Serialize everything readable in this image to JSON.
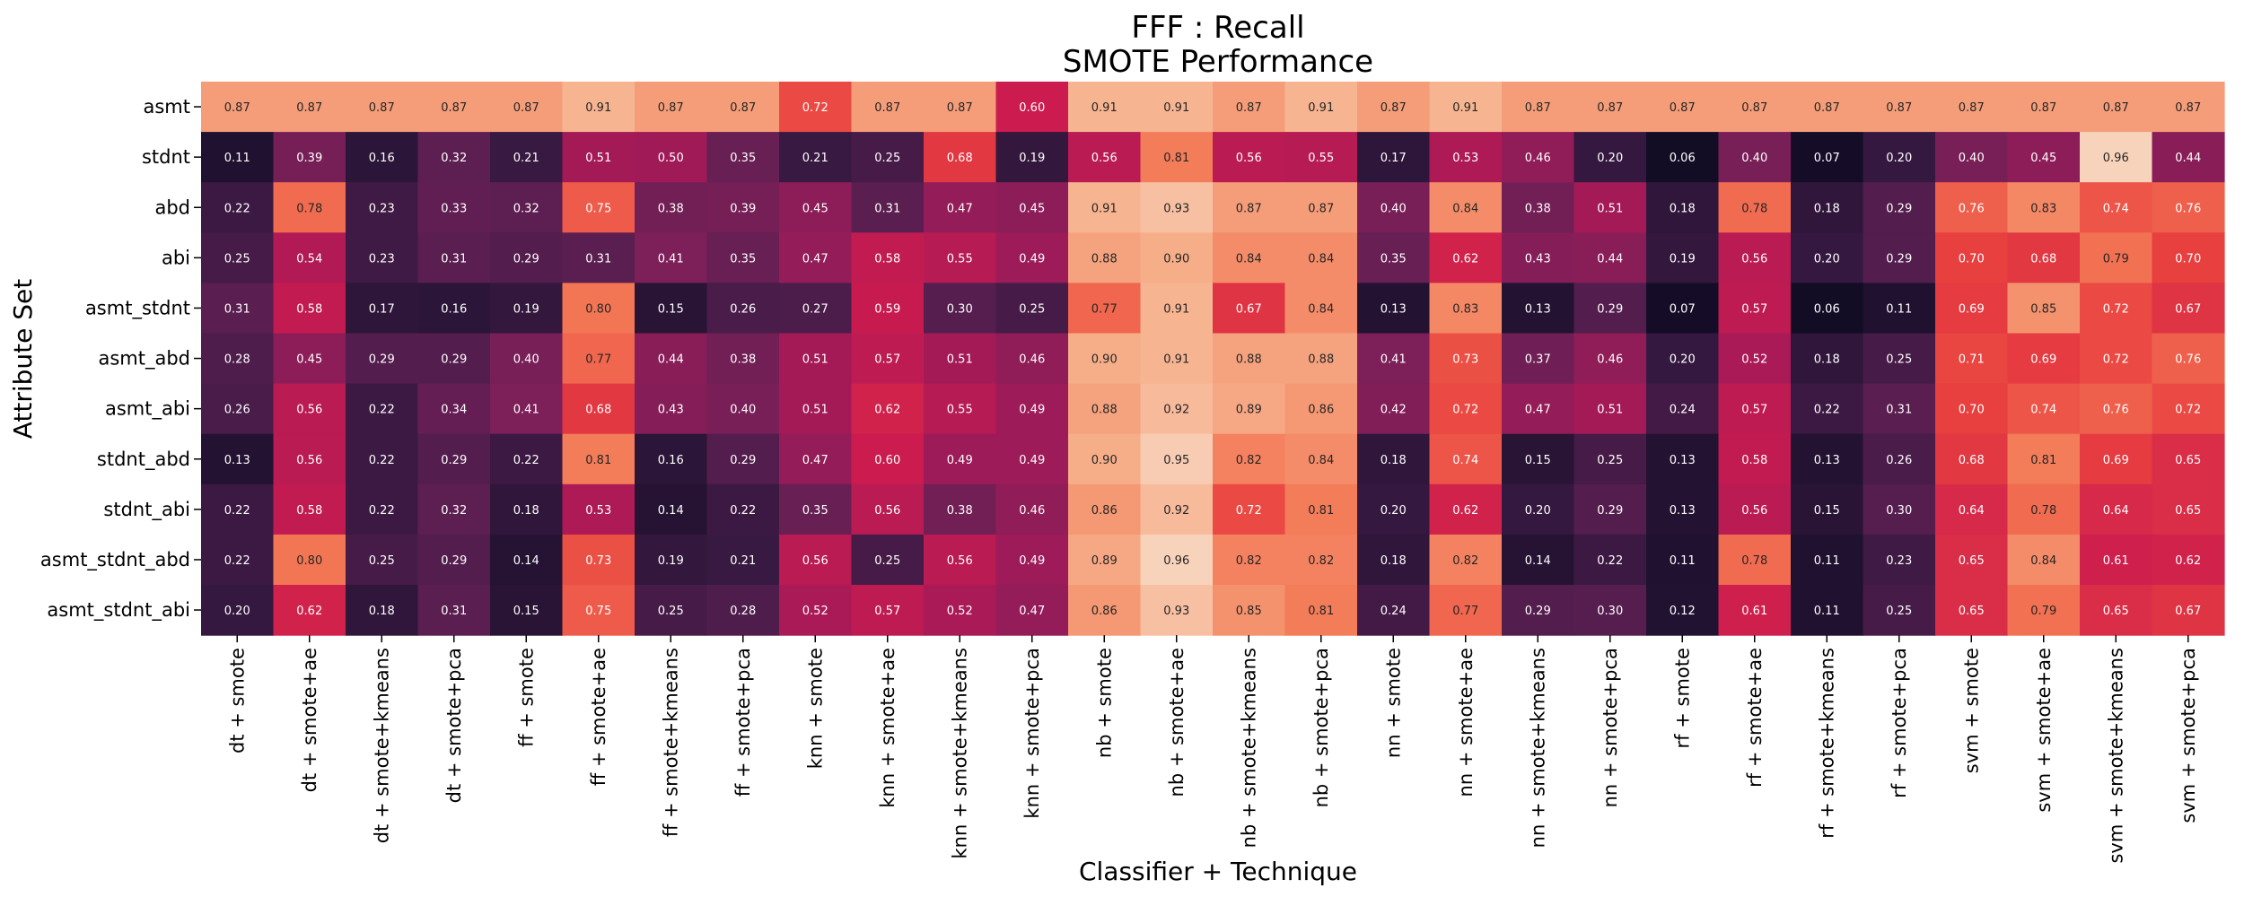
{
  "chart_data": {
    "type": "heatmap",
    "title": "FFF : Recall",
    "subtitle": "SMOTE Performance",
    "xlabel": "Classifier + Technique",
    "ylabel": "Attribute Set",
    "colormap": "rocket",
    "color_range": [
      0.0,
      1.0
    ],
    "colorbar": false,
    "x_categories": [
      "dt + smote",
      "dt + smote+ae",
      "dt + smote+kmeans",
      "dt + smote+pca",
      "ff + smote",
      "ff + smote+ae",
      "ff + smote+kmeans",
      "ff + smote+pca",
      "knn + smote",
      "knn + smote+ae",
      "knn + smote+kmeans",
      "knn + smote+pca",
      "nb + smote",
      "nb + smote+ae",
      "nb + smote+kmeans",
      "nb + smote+pca",
      "nn + smote",
      "nn + smote+ae",
      "nn + smote+kmeans",
      "nn + smote+pca",
      "rf + smote",
      "rf + smote+ae",
      "rf + smote+kmeans",
      "rf + smote+pca",
      "svm + smote",
      "svm + smote+ae",
      "svm + smote+kmeans",
      "svm + smote+pca"
    ],
    "y_categories": [
      "asmt",
      "stdnt",
      "abd",
      "abi",
      "asmt_stdnt",
      "asmt_abd",
      "asmt_abi",
      "stdnt_abd",
      "stdnt_abi",
      "asmt_stdnt_abd",
      "asmt_stdnt_abi"
    ],
    "values": [
      [
        0.87,
        0.87,
        0.87,
        0.87,
        0.87,
        0.91,
        0.87,
        0.87,
        0.72,
        0.87,
        0.87,
        0.6,
        0.91,
        0.91,
        0.87,
        0.91,
        0.87,
        0.91,
        0.87,
        0.87,
        0.87,
        0.87,
        0.87,
        0.87,
        0.87,
        0.87,
        0.87,
        0.87
      ],
      [
        0.11,
        0.39,
        0.16,
        0.32,
        0.21,
        0.51,
        0.5,
        0.35,
        0.21,
        0.25,
        0.68,
        0.19,
        0.56,
        0.81,
        0.56,
        0.55,
        0.17,
        0.53,
        0.46,
        0.2,
        0.06,
        0.4,
        0.07,
        0.2,
        0.4,
        0.45,
        0.96,
        0.44
      ],
      [
        0.22,
        0.78,
        0.23,
        0.33,
        0.32,
        0.75,
        0.38,
        0.39,
        0.45,
        0.31,
        0.47,
        0.45,
        0.91,
        0.93,
        0.87,
        0.87,
        0.4,
        0.84,
        0.38,
        0.51,
        0.18,
        0.78,
        0.18,
        0.29,
        0.76,
        0.83,
        0.74,
        0.76
      ],
      [
        0.25,
        0.54,
        0.23,
        0.31,
        0.29,
        0.31,
        0.41,
        0.35,
        0.47,
        0.58,
        0.55,
        0.49,
        0.88,
        0.9,
        0.84,
        0.84,
        0.35,
        0.62,
        0.43,
        0.44,
        0.19,
        0.56,
        0.2,
        0.29,
        0.7,
        0.68,
        0.79,
        0.7
      ],
      [
        0.31,
        0.58,
        0.17,
        0.16,
        0.19,
        0.8,
        0.15,
        0.26,
        0.27,
        0.59,
        0.3,
        0.25,
        0.77,
        0.91,
        0.67,
        0.84,
        0.13,
        0.83,
        0.13,
        0.29,
        0.07,
        0.57,
        0.06,
        0.11,
        0.69,
        0.85,
        0.72,
        0.67
      ],
      [
        0.28,
        0.45,
        0.29,
        0.29,
        0.4,
        0.77,
        0.44,
        0.38,
        0.51,
        0.57,
        0.51,
        0.46,
        0.9,
        0.91,
        0.88,
        0.88,
        0.41,
        0.73,
        0.37,
        0.46,
        0.2,
        0.52,
        0.18,
        0.25,
        0.71,
        0.69,
        0.72,
        0.76
      ],
      [
        0.26,
        0.56,
        0.22,
        0.34,
        0.41,
        0.68,
        0.43,
        0.4,
        0.51,
        0.62,
        0.55,
        0.49,
        0.88,
        0.92,
        0.89,
        0.86,
        0.42,
        0.72,
        0.47,
        0.51,
        0.24,
        0.57,
        0.22,
        0.31,
        0.7,
        0.74,
        0.76,
        0.72
      ],
      [
        0.13,
        0.56,
        0.22,
        0.29,
        0.22,
        0.81,
        0.16,
        0.29,
        0.47,
        0.6,
        0.49,
        0.49,
        0.9,
        0.95,
        0.82,
        0.84,
        0.18,
        0.74,
        0.15,
        0.25,
        0.13,
        0.58,
        0.13,
        0.26,
        0.68,
        0.81,
        0.69,
        0.65
      ],
      [
        0.22,
        0.58,
        0.22,
        0.32,
        0.18,
        0.53,
        0.14,
        0.22,
        0.35,
        0.56,
        0.38,
        0.46,
        0.86,
        0.92,
        0.72,
        0.81,
        0.2,
        0.62,
        0.2,
        0.29,
        0.13,
        0.56,
        0.15,
        0.3,
        0.64,
        0.78,
        0.64,
        0.65
      ],
      [
        0.22,
        0.8,
        0.25,
        0.29,
        0.14,
        0.73,
        0.19,
        0.21,
        0.56,
        0.25,
        0.56,
        0.49,
        0.89,
        0.96,
        0.82,
        0.82,
        0.18,
        0.82,
        0.14,
        0.22,
        0.11,
        0.78,
        0.11,
        0.23,
        0.65,
        0.84,
        0.61,
        0.62
      ],
      [
        0.2,
        0.62,
        0.18,
        0.31,
        0.15,
        0.75,
        0.25,
        0.28,
        0.52,
        0.57,
        0.52,
        0.47,
        0.86,
        0.93,
        0.85,
        0.81,
        0.24,
        0.77,
        0.29,
        0.3,
        0.12,
        0.61,
        0.11,
        0.25,
        0.65,
        0.79,
        0.65,
        0.67
      ]
    ],
    "value_format": "0.00",
    "grid": false,
    "legend": "none"
  }
}
